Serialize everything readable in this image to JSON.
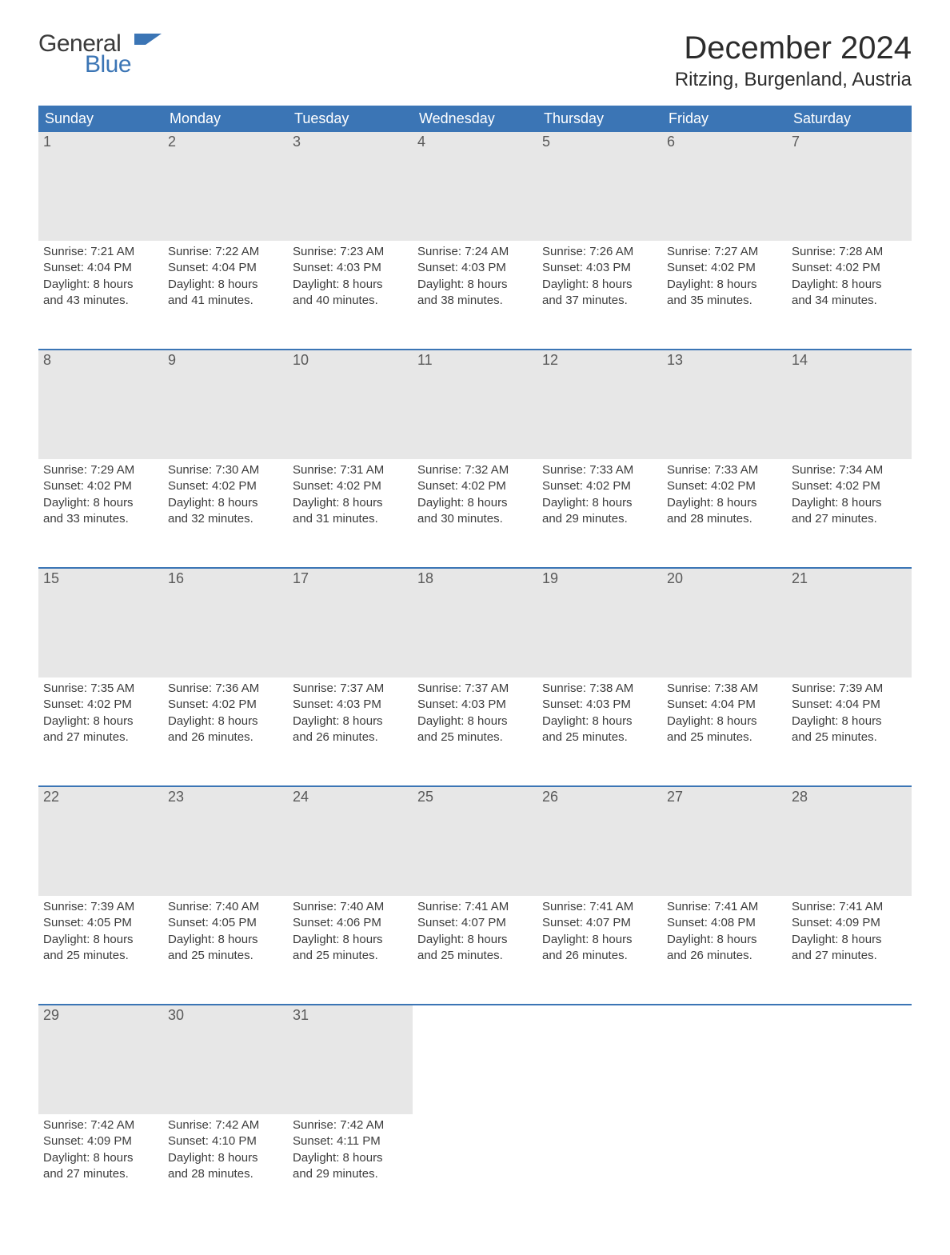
{
  "brand": {
    "top": "General",
    "bottom": "Blue",
    "top_color": "#3a3a3a",
    "bottom_color": "#3b75b5",
    "mark_color": "#3b75b5"
  },
  "header": {
    "month_title": "December 2024",
    "location": "Ritzing, Burgenland, Austria"
  },
  "styling": {
    "header_bg": "#3b75b5",
    "header_text_color": "#ffffff",
    "daynum_bg": "#e7e7e7",
    "daynum_color": "#5a5a5a",
    "body_text_color": "#3c3c3c",
    "week_separator_color": "#3b75b5",
    "background": "#ffffff",
    "th_fontsize": 18,
    "daynum_fontsize": 18,
    "content_fontsize": 15,
    "title_fontsize": 40,
    "location_fontsize": 24
  },
  "day_headers": [
    "Sunday",
    "Monday",
    "Tuesday",
    "Wednesday",
    "Thursday",
    "Friday",
    "Saturday"
  ],
  "weeks": [
    [
      {
        "n": "1",
        "sunrise": "Sunrise: 7:21 AM",
        "sunset": "Sunset: 4:04 PM",
        "day1": "Daylight: 8 hours",
        "day2": "and 43 minutes."
      },
      {
        "n": "2",
        "sunrise": "Sunrise: 7:22 AM",
        "sunset": "Sunset: 4:04 PM",
        "day1": "Daylight: 8 hours",
        "day2": "and 41 minutes."
      },
      {
        "n": "3",
        "sunrise": "Sunrise: 7:23 AM",
        "sunset": "Sunset: 4:03 PM",
        "day1": "Daylight: 8 hours",
        "day2": "and 40 minutes."
      },
      {
        "n": "4",
        "sunrise": "Sunrise: 7:24 AM",
        "sunset": "Sunset: 4:03 PM",
        "day1": "Daylight: 8 hours",
        "day2": "and 38 minutes."
      },
      {
        "n": "5",
        "sunrise": "Sunrise: 7:26 AM",
        "sunset": "Sunset: 4:03 PM",
        "day1": "Daylight: 8 hours",
        "day2": "and 37 minutes."
      },
      {
        "n": "6",
        "sunrise": "Sunrise: 7:27 AM",
        "sunset": "Sunset: 4:02 PM",
        "day1": "Daylight: 8 hours",
        "day2": "and 35 minutes."
      },
      {
        "n": "7",
        "sunrise": "Sunrise: 7:28 AM",
        "sunset": "Sunset: 4:02 PM",
        "day1": "Daylight: 8 hours",
        "day2": "and 34 minutes."
      }
    ],
    [
      {
        "n": "8",
        "sunrise": "Sunrise: 7:29 AM",
        "sunset": "Sunset: 4:02 PM",
        "day1": "Daylight: 8 hours",
        "day2": "and 33 minutes."
      },
      {
        "n": "9",
        "sunrise": "Sunrise: 7:30 AM",
        "sunset": "Sunset: 4:02 PM",
        "day1": "Daylight: 8 hours",
        "day2": "and 32 minutes."
      },
      {
        "n": "10",
        "sunrise": "Sunrise: 7:31 AM",
        "sunset": "Sunset: 4:02 PM",
        "day1": "Daylight: 8 hours",
        "day2": "and 31 minutes."
      },
      {
        "n": "11",
        "sunrise": "Sunrise: 7:32 AM",
        "sunset": "Sunset: 4:02 PM",
        "day1": "Daylight: 8 hours",
        "day2": "and 30 minutes."
      },
      {
        "n": "12",
        "sunrise": "Sunrise: 7:33 AM",
        "sunset": "Sunset: 4:02 PM",
        "day1": "Daylight: 8 hours",
        "day2": "and 29 minutes."
      },
      {
        "n": "13",
        "sunrise": "Sunrise: 7:33 AM",
        "sunset": "Sunset: 4:02 PM",
        "day1": "Daylight: 8 hours",
        "day2": "and 28 minutes."
      },
      {
        "n": "14",
        "sunrise": "Sunrise: 7:34 AM",
        "sunset": "Sunset: 4:02 PM",
        "day1": "Daylight: 8 hours",
        "day2": "and 27 minutes."
      }
    ],
    [
      {
        "n": "15",
        "sunrise": "Sunrise: 7:35 AM",
        "sunset": "Sunset: 4:02 PM",
        "day1": "Daylight: 8 hours",
        "day2": "and 27 minutes."
      },
      {
        "n": "16",
        "sunrise": "Sunrise: 7:36 AM",
        "sunset": "Sunset: 4:02 PM",
        "day1": "Daylight: 8 hours",
        "day2": "and 26 minutes."
      },
      {
        "n": "17",
        "sunrise": "Sunrise: 7:37 AM",
        "sunset": "Sunset: 4:03 PM",
        "day1": "Daylight: 8 hours",
        "day2": "and 26 minutes."
      },
      {
        "n": "18",
        "sunrise": "Sunrise: 7:37 AM",
        "sunset": "Sunset: 4:03 PM",
        "day1": "Daylight: 8 hours",
        "day2": "and 25 minutes."
      },
      {
        "n": "19",
        "sunrise": "Sunrise: 7:38 AM",
        "sunset": "Sunset: 4:03 PM",
        "day1": "Daylight: 8 hours",
        "day2": "and 25 minutes."
      },
      {
        "n": "20",
        "sunrise": "Sunrise: 7:38 AM",
        "sunset": "Sunset: 4:04 PM",
        "day1": "Daylight: 8 hours",
        "day2": "and 25 minutes."
      },
      {
        "n": "21",
        "sunrise": "Sunrise: 7:39 AM",
        "sunset": "Sunset: 4:04 PM",
        "day1": "Daylight: 8 hours",
        "day2": "and 25 minutes."
      }
    ],
    [
      {
        "n": "22",
        "sunrise": "Sunrise: 7:39 AM",
        "sunset": "Sunset: 4:05 PM",
        "day1": "Daylight: 8 hours",
        "day2": "and 25 minutes."
      },
      {
        "n": "23",
        "sunrise": "Sunrise: 7:40 AM",
        "sunset": "Sunset: 4:05 PM",
        "day1": "Daylight: 8 hours",
        "day2": "and 25 minutes."
      },
      {
        "n": "24",
        "sunrise": "Sunrise: 7:40 AM",
        "sunset": "Sunset: 4:06 PM",
        "day1": "Daylight: 8 hours",
        "day2": "and 25 minutes."
      },
      {
        "n": "25",
        "sunrise": "Sunrise: 7:41 AM",
        "sunset": "Sunset: 4:07 PM",
        "day1": "Daylight: 8 hours",
        "day2": "and 25 minutes."
      },
      {
        "n": "26",
        "sunrise": "Sunrise: 7:41 AM",
        "sunset": "Sunset: 4:07 PM",
        "day1": "Daylight: 8 hours",
        "day2": "and 26 minutes."
      },
      {
        "n": "27",
        "sunrise": "Sunrise: 7:41 AM",
        "sunset": "Sunset: 4:08 PM",
        "day1": "Daylight: 8 hours",
        "day2": "and 26 minutes."
      },
      {
        "n": "28",
        "sunrise": "Sunrise: 7:41 AM",
        "sunset": "Sunset: 4:09 PM",
        "day1": "Daylight: 8 hours",
        "day2": "and 27 minutes."
      }
    ],
    [
      {
        "n": "29",
        "sunrise": "Sunrise: 7:42 AM",
        "sunset": "Sunset: 4:09 PM",
        "day1": "Daylight: 8 hours",
        "day2": "and 27 minutes."
      },
      {
        "n": "30",
        "sunrise": "Sunrise: 7:42 AM",
        "sunset": "Sunset: 4:10 PM",
        "day1": "Daylight: 8 hours",
        "day2": "and 28 minutes."
      },
      {
        "n": "31",
        "sunrise": "Sunrise: 7:42 AM",
        "sunset": "Sunset: 4:11 PM",
        "day1": "Daylight: 8 hours",
        "day2": "and 29 minutes."
      },
      null,
      null,
      null,
      null
    ]
  ]
}
